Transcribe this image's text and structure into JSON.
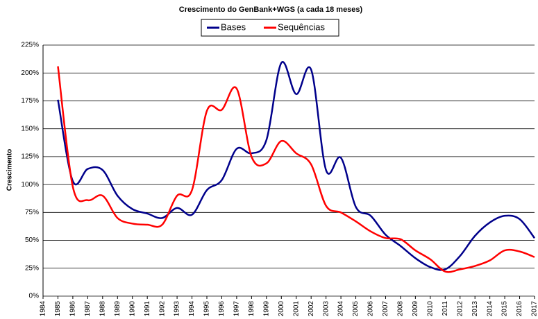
{
  "chart_data": {
    "type": "line",
    "title": "Crescimento do GenBank+WGS (a cada 18 meses)",
    "y_label": "Crescimento",
    "categories": [
      "1984",
      "1985",
      "1986",
      "1987",
      "1988",
      "1989",
      "1990",
      "1991",
      "1992",
      "1993",
      "1994",
      "1995",
      "1996",
      "1997",
      "1998",
      "1999",
      "2000",
      "2001",
      "2002",
      "2003",
      "2004",
      "2005",
      "2006",
      "2007",
      "2008",
      "2009",
      "2010",
      "2011",
      "2012",
      "2013",
      "2014",
      "2015",
      "2016",
      "2017"
    ],
    "series": [
      {
        "name": "Bases",
        "color": "#00008b",
        "values": [
          null,
          176,
          103,
          114,
          113,
          90,
          78,
          74,
          70,
          79,
          73,
          95,
          104,
          132,
          128,
          140,
          209,
          181,
          203,
          113,
          124,
          80,
          72,
          55,
          45,
          34,
          26,
          24,
          36,
          54,
          66,
          72,
          69,
          52
        ]
      },
      {
        "name": "Sequências",
        "color": "#ff0000",
        "values": [
          null,
          206,
          98,
          86,
          90,
          70,
          65,
          64,
          64,
          90,
          95,
          166,
          167,
          186,
          125,
          119,
          139,
          128,
          118,
          81,
          75,
          67,
          58,
          52,
          51,
          41,
          33,
          22,
          24,
          27,
          32,
          41,
          40,
          35
        ]
      }
    ],
    "ylim": [
      0,
      225
    ],
    "yticks": [
      {
        "value": 0,
        "label": "0%"
      },
      {
        "value": 25,
        "label": "25%"
      },
      {
        "value": 50,
        "label": "50%"
      },
      {
        "value": 75,
        "label": "75%"
      },
      {
        "value": 100,
        "label": "100%"
      },
      {
        "value": 125,
        "label": "125%"
      },
      {
        "value": 150,
        "label": "150%"
      },
      {
        "value": 175,
        "label": "175%"
      },
      {
        "value": 200,
        "label": "200%"
      },
      {
        "value": 225,
        "label": "225%"
      }
    ],
    "grid": true,
    "legend": "top"
  }
}
